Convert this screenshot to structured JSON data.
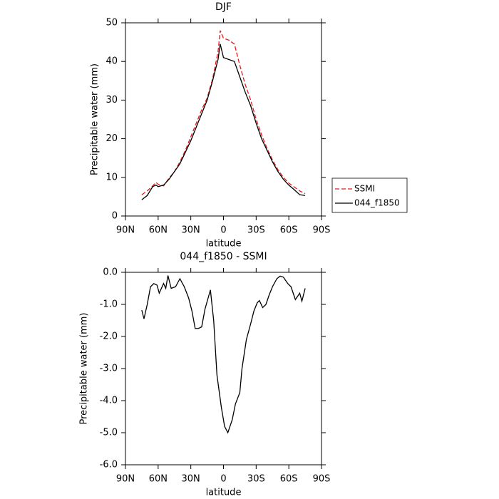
{
  "chart_data": [
    {
      "type": "line",
      "title": "DJF",
      "xlabel": "latitude",
      "ylabel": "Precipitable water  (mm)",
      "x": [
        75,
        70,
        65,
        62,
        60,
        55,
        50,
        45,
        40,
        35,
        30,
        25,
        20,
        15,
        10,
        5,
        3,
        0,
        -5,
        -10,
        -15,
        -20,
        -25,
        -30,
        -35,
        -40,
        -45,
        -50,
        -55,
        -60,
        -65,
        -70,
        -75
      ],
      "series": [
        {
          "name": "SSMI",
          "color": "#e41a1c",
          "line_style": "dashed",
          "values": [
            5.5,
            6.5,
            7.8,
            8.7,
            8.2,
            7.8,
            9.8,
            11.5,
            14,
            17,
            20.5,
            24,
            27.5,
            30.5,
            35.5,
            42.5,
            48,
            46,
            45.5,
            44.5,
            39,
            34,
            30,
            25,
            21,
            17.5,
            14.5,
            12,
            10,
            8.5,
            7.5,
            6.5,
            5.8
          ]
        },
        {
          "name": "044_f1850",
          "color": "#000000",
          "line_style": "solid",
          "values": [
            4.2,
            5.3,
            7.6,
            8.0,
            7.6,
            8.0,
            9.5,
            11.5,
            13.5,
            16.5,
            19.5,
            23,
            26.5,
            30,
            35,
            40.5,
            44.5,
            41,
            40.5,
            40,
            36,
            32,
            28.5,
            24,
            20,
            17,
            14,
            11.5,
            9.5,
            8,
            6.8,
            5.5,
            5.3
          ]
        }
      ],
      "xlim": [
        90,
        -90
      ],
      "xticks": [
        {
          "value": 90,
          "label": "90N"
        },
        {
          "value": 60,
          "label": "60N"
        },
        {
          "value": 30,
          "label": "30N"
        },
        0,
        {
          "value": -30,
          "label": "30S"
        },
        {
          "value": -60,
          "label": "60S"
        },
        {
          "value": -90,
          "label": "90S"
        }
      ],
      "ylim": [
        0,
        50
      ],
      "yticks": [
        0,
        10,
        20,
        30,
        40,
        50
      ],
      "legend": "right"
    },
    {
      "type": "line",
      "title": "044_f1850 - SSMI",
      "xlabel": "latitude",
      "ylabel": "Precipitable water  (mm)",
      "x": [
        75,
        73,
        70,
        67,
        64,
        61,
        59,
        55,
        53,
        51,
        48,
        44,
        40,
        36,
        32,
        29,
        26,
        23,
        20,
        17,
        12,
        9,
        6,
        2,
        -1,
        -4,
        -8,
        -11,
        -15,
        -17,
        -21,
        -25,
        -28,
        -31,
        -33,
        -36,
        -39,
        -42,
        -45,
        -49,
        -52,
        -55,
        -59,
        -62,
        -66,
        -70,
        -72,
        -75
      ],
      "color": "#000000",
      "values": [
        -1.18,
        -1.45,
        -1.0,
        -0.45,
        -0.35,
        -0.4,
        -0.65,
        -0.35,
        -0.5,
        -0.1,
        -0.5,
        -0.45,
        -0.2,
        -0.45,
        -0.8,
        -1.2,
        -1.75,
        -1.75,
        -1.7,
        -1.15,
        -0.55,
        -1.5,
        -3.2,
        -4.2,
        -4.8,
        -5.0,
        -4.6,
        -4.1,
        -3.75,
        -3.0,
        -2.1,
        -1.6,
        -1.2,
        -0.95,
        -0.88,
        -1.1,
        -1.0,
        -0.7,
        -0.45,
        -0.2,
        -0.12,
        -0.15,
        -0.35,
        -0.45,
        -0.85,
        -0.65,
        -0.9,
        -0.5
      ],
      "xlim": [
        90,
        -90
      ],
      "xticks": [
        {
          "value": 90,
          "label": "90N"
        },
        {
          "value": 60,
          "label": "60N"
        },
        {
          "value": 30,
          "label": "30N"
        },
        0,
        {
          "value": -30,
          "label": "30S"
        },
        {
          "value": -60,
          "label": "60S"
        },
        {
          "value": -90,
          "label": "90S"
        }
      ],
      "ylim": [
        -6,
        0
      ],
      "yticks": [
        {
          "value": 0,
          "label": "0.0"
        },
        {
          "value": -1,
          "label": "-1.0"
        },
        {
          "value": -2,
          "label": "-2.0"
        },
        {
          "value": -3,
          "label": "-3.0"
        },
        {
          "value": -4,
          "label": "-4.0"
        },
        {
          "value": -5,
          "label": "-5.0"
        },
        {
          "value": -6,
          "label": "-6.0"
        }
      ]
    }
  ]
}
